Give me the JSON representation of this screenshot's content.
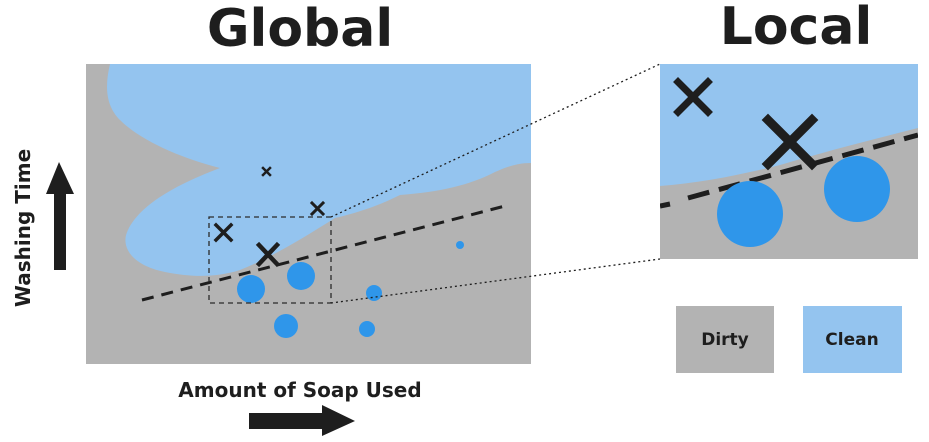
{
  "global_panel": {
    "title": "Global"
  },
  "local_panel": {
    "title": "Local"
  },
  "axes": {
    "x_label": "Amount of Soap Used",
    "y_label": "Washing Time"
  },
  "legend": [
    {
      "label": "Dirty",
      "color": "#b3b3b3"
    },
    {
      "label": "Clean",
      "color": "#94c4ef"
    }
  ],
  "colors": {
    "dirty_region": "#b3b3b3",
    "clean_region": "#94c4ef",
    "dot": "#2f96ea",
    "mark": "#1e1e1e"
  },
  "markers": {
    "dot": "circle",
    "cross": "x-mark",
    "boundary": "dashed-line"
  }
}
